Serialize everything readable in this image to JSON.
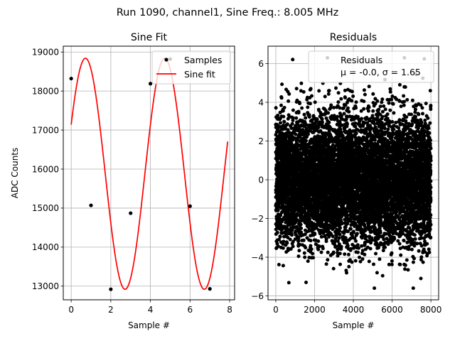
{
  "suptitle": "Run 1090, channel1, Sine Freq.: 8.005 MHz",
  "chart_data": [
    {
      "type": "scatter+line",
      "title": "Sine Fit",
      "xlabel": "Sample #",
      "ylabel": "ADC Counts",
      "xlim": [
        -0.4,
        8.25
      ],
      "ylim": [
        12650,
        19150
      ],
      "xticks": [
        0,
        2,
        4,
        6,
        8
      ],
      "yticks": [
        13000,
        14000,
        15000,
        16000,
        17000,
        18000,
        19000
      ],
      "grid": true,
      "legend_position": "top-right",
      "series": [
        {
          "name": "Samples",
          "kind": "points",
          "color": "#000000",
          "x": [
            0,
            1,
            2,
            3,
            4,
            5,
            6,
            7
          ],
          "y": [
            18320,
            15070,
            12920,
            14870,
            18190,
            18820,
            15050,
            12930
          ]
        },
        {
          "name": "Sine fit",
          "kind": "curve",
          "color": "#ff0000",
          "offset": 15880,
          "amplitude": 2960,
          "period": 4.0,
          "peak_x": 4.72,
          "x_range": [
            0,
            7.9
          ]
        }
      ]
    },
    {
      "type": "scatter",
      "title": "Residuals",
      "xlabel": "Sample #",
      "ylabel": "",
      "xlim": [
        -400,
        8400
      ],
      "ylim": [
        -6.2,
        6.9
      ],
      "xticks": [
        0,
        2000,
        4000,
        6000,
        8000
      ],
      "yticks": [
        -6,
        -4,
        -2,
        0,
        2,
        4,
        6
      ],
      "grid": true,
      "legend_position": "top-right",
      "legend_title": "Residuals",
      "legend_stats": "μ = -0.0, σ = 1.65",
      "series": [
        {
          "name": "Residuals",
          "color": "#000000",
          "n_points": 8000,
          "mean": 0.0,
          "std": 1.65,
          "x_range": [
            0,
            7999
          ],
          "y_range": [
            -5.6,
            6.3
          ]
        }
      ]
    }
  ]
}
